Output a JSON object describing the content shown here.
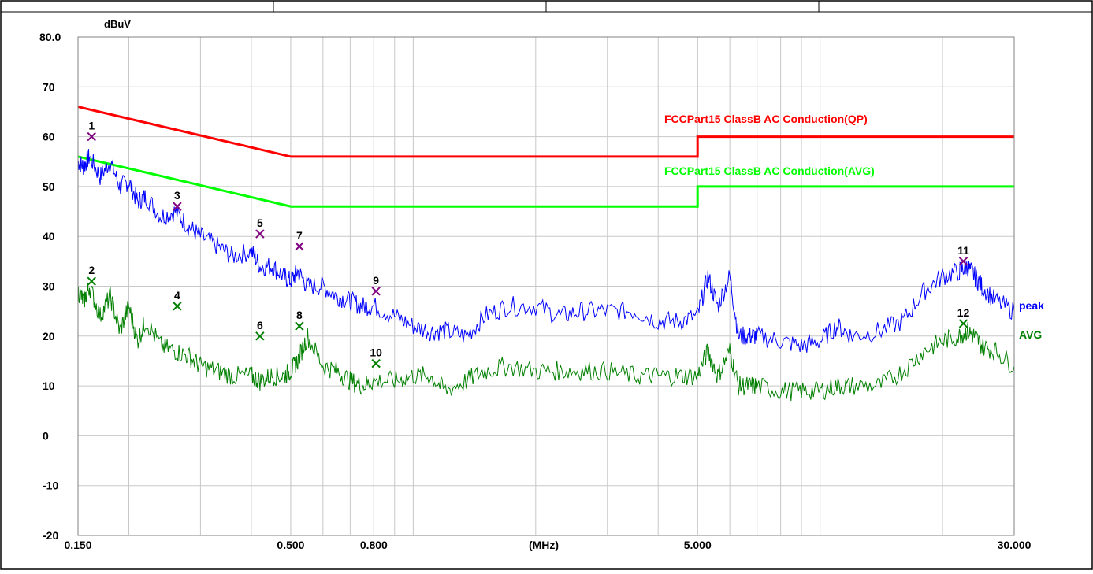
{
  "chart_data": {
    "type": "line",
    "x_scale": "log",
    "xlim": [
      0.15,
      30.0
    ],
    "ylim": [
      -20,
      80
    ],
    "y_unit": "dBuV",
    "x_unit": "(MHz)",
    "y_ticks": [
      "80.0",
      "70",
      "60",
      "50",
      "40",
      "30",
      "20",
      "10",
      "0",
      "-10",
      "-20"
    ],
    "y_tick_values": [
      80,
      70,
      60,
      50,
      40,
      30,
      20,
      10,
      0,
      -10,
      -20
    ],
    "x_ticks": [
      {
        "value": 0.15,
        "label": "0.150"
      },
      {
        "value": 0.5,
        "label": "0.500"
      },
      {
        "value": 0.8,
        "label": "0.800"
      },
      {
        "value": 5.0,
        "label": "5.000"
      },
      {
        "value": 30.0,
        "label": "30.000"
      }
    ],
    "grid": true,
    "limit_lines": [
      {
        "name": "FCCPart15 ClassB AC Conduction(QP)",
        "color": "#ff0000",
        "points": [
          [
            0.15,
            66
          ],
          [
            0.5,
            56
          ],
          [
            5.0,
            56
          ],
          [
            5.0,
            60
          ],
          [
            30.0,
            60
          ]
        ]
      },
      {
        "name": "FCCPart15 ClassB AC Conduction(AVG)",
        "color": "#00ff00",
        "points": [
          [
            0.15,
            56
          ],
          [
            0.5,
            46
          ],
          [
            5.0,
            46
          ],
          [
            5.0,
            50
          ],
          [
            30.0,
            50
          ]
        ]
      }
    ],
    "series": [
      {
        "name": "peak",
        "color": "#0000ff",
        "x": [
          0.15,
          0.155,
          0.16,
          0.17,
          0.18,
          0.19,
          0.2,
          0.21,
          0.22,
          0.24,
          0.26,
          0.28,
          0.3,
          0.33,
          0.36,
          0.4,
          0.42,
          0.45,
          0.48,
          0.5,
          0.52,
          0.55,
          0.6,
          0.65,
          0.7,
          0.75,
          0.8,
          0.9,
          1.0,
          1.1,
          1.2,
          1.35,
          1.5,
          1.7,
          2.0,
          2.3,
          2.6,
          3.0,
          3.5,
          4.0,
          4.5,
          5.0,
          5.3,
          5.6,
          6.0,
          6.3,
          6.7,
          7.0,
          8.0,
          9.0,
          10.0,
          11.0,
          12.0,
          14.0,
          16.0,
          18.0,
          20.0,
          22.0,
          23.0,
          24.0,
          25.0,
          27.0,
          30.0
        ],
        "y": [
          55,
          54,
          56,
          52,
          55,
          50,
          51,
          47,
          48,
          44,
          45,
          42,
          40,
          38,
          36,
          37,
          34,
          34,
          32,
          31,
          33,
          30,
          30,
          28,
          27,
          26,
          26,
          24,
          22,
          21,
          21,
          20,
          24,
          26,
          26,
          24,
          25,
          25,
          25,
          23,
          23,
          24,
          32,
          26,
          32,
          20,
          20,
          20,
          19,
          18,
          19,
          22,
          20,
          21,
          23,
          29,
          32,
          33,
          34,
          32,
          30,
          27,
          25
        ]
      },
      {
        "name": "AVG",
        "color": "#008000",
        "x": [
          0.15,
          0.155,
          0.16,
          0.17,
          0.18,
          0.19,
          0.2,
          0.21,
          0.22,
          0.24,
          0.26,
          0.28,
          0.3,
          0.33,
          0.36,
          0.4,
          0.42,
          0.45,
          0.48,
          0.5,
          0.52,
          0.55,
          0.6,
          0.65,
          0.7,
          0.75,
          0.8,
          0.9,
          1.0,
          1.1,
          1.2,
          1.35,
          1.5,
          1.7,
          2.0,
          2.3,
          2.6,
          3.0,
          3.5,
          4.0,
          4.5,
          5.0,
          5.3,
          5.6,
          6.0,
          6.3,
          6.7,
          7.0,
          8.0,
          9.0,
          10.0,
          11.0,
          12.0,
          14.0,
          16.0,
          18.0,
          20.0,
          22.0,
          23.0,
          24.0,
          25.0,
          27.0,
          30.0
        ],
        "y": [
          29,
          27,
          30,
          24,
          28,
          21,
          26,
          19,
          23,
          18,
          17,
          16,
          14,
          13,
          12,
          12,
          11,
          12,
          12,
          13,
          15,
          20,
          14,
          13,
          11,
          10,
          11,
          11,
          12,
          12,
          9,
          11,
          13,
          14,
          13,
          13,
          13,
          13,
          12,
          12,
          12,
          12,
          17,
          12,
          17,
          10,
          10,
          10,
          9,
          9,
          9,
          10,
          10,
          10,
          13,
          17,
          19,
          20,
          21,
          20,
          18,
          17,
          14
        ]
      }
    ],
    "markers": [
      {
        "label": "1",
        "x": 0.162,
        "y": 60.0,
        "color": "#800080"
      },
      {
        "label": "2",
        "x": 0.162,
        "y": 31.0,
        "color": "#008000"
      },
      {
        "label": "3",
        "x": 0.263,
        "y": 46.0,
        "color": "#800080"
      },
      {
        "label": "4",
        "x": 0.263,
        "y": 26.0,
        "color": "#008000"
      },
      {
        "label": "5",
        "x": 0.42,
        "y": 40.5,
        "color": "#800080"
      },
      {
        "label": "6",
        "x": 0.42,
        "y": 20.0,
        "color": "#008000"
      },
      {
        "label": "7",
        "x": 0.525,
        "y": 38.0,
        "color": "#800080"
      },
      {
        "label": "8",
        "x": 0.525,
        "y": 22.0,
        "color": "#008000"
      },
      {
        "label": "9",
        "x": 0.81,
        "y": 29.0,
        "color": "#800080"
      },
      {
        "label": "10",
        "x": 0.81,
        "y": 14.5,
        "color": "#008000"
      },
      {
        "label": "11",
        "x": 22.5,
        "y": 35.0,
        "color": "#800080"
      },
      {
        "label": "12",
        "x": 22.5,
        "y": 22.5,
        "color": "#008000"
      }
    ]
  }
}
